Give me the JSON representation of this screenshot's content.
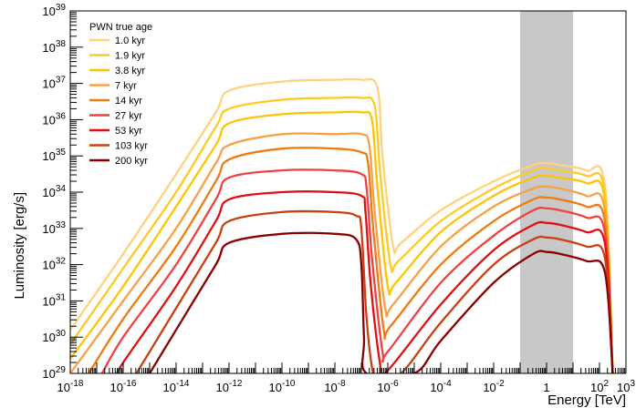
{
  "chart_data": {
    "type": "line",
    "xlabel": "Energy [TeV]",
    "ylabel": "Luminosity [erg/s]",
    "x_scale": "log",
    "y_scale": "log",
    "xlim": [
      1e-18,
      1000
    ],
    "ylim": [
      1e+29,
      1e+39
    ],
    "x_ticks": [
      {
        "base": "10",
        "exp": "-18",
        "value": -18
      },
      {
        "base": "10",
        "exp": "-16",
        "value": -16
      },
      {
        "base": "10",
        "exp": "-14",
        "value": -14
      },
      {
        "base": "10",
        "exp": "-12",
        "value": -12
      },
      {
        "base": "10",
        "exp": "-10",
        "value": -10
      },
      {
        "base": "10",
        "exp": "-8",
        "value": -8
      },
      {
        "base": "10",
        "exp": "-6",
        "value": -6
      },
      {
        "base": "10",
        "exp": "-4",
        "value": -4
      },
      {
        "base": "10",
        "exp": "-2",
        "value": -2
      },
      {
        "base": "1",
        "exp": "",
        "value": 0
      },
      {
        "base": "10",
        "exp": "2",
        "value": 2
      },
      {
        "base": "10",
        "exp": "3",
        "value": 3
      }
    ],
    "y_ticks": [
      {
        "base": "10",
        "exp": "29",
        "value": 29
      },
      {
        "base": "10",
        "exp": "30",
        "value": 30
      },
      {
        "base": "10",
        "exp": "31",
        "value": 31
      },
      {
        "base": "10",
        "exp": "32",
        "value": 32
      },
      {
        "base": "10",
        "exp": "33",
        "value": 33
      },
      {
        "base": "10",
        "exp": "34",
        "value": 34
      },
      {
        "base": "10",
        "exp": "35",
        "value": 35
      },
      {
        "base": "10",
        "exp": "36",
        "value": 36
      },
      {
        "base": "10",
        "exp": "37",
        "value": 37
      },
      {
        "base": "10",
        "exp": "38",
        "value": 38
      },
      {
        "base": "10",
        "exp": "39",
        "value": 39
      }
    ],
    "shaded_band": {
      "x_range": [
        0.1,
        10
      ],
      "color": "#c8c8c8"
    },
    "legend": {
      "title": "PWN true age",
      "placement": "top-left"
    },
    "series": [
      {
        "name": "1.0 kyr",
        "color": "#ffd27f",
        "log_x": [
          -18.0,
          -16.0,
          -14.0,
          -12.5,
          -12.0,
          -10.0,
          -8.0,
          -7.0,
          -6.4,
          -6.2,
          -5.8,
          -5.5,
          -4.0,
          -2.0,
          -0.5,
          0.0,
          0.5,
          1.5,
          2.2,
          2.5
        ],
        "log_y": [
          30.2,
          32.3,
          34.5,
          36.2,
          36.8,
          37.05,
          37.1,
          37.1,
          36.9,
          35.0,
          32.5,
          32.6,
          33.5,
          34.3,
          34.75,
          34.8,
          34.75,
          34.6,
          34.2,
          29.0
        ]
      },
      {
        "name": "1.9 kyr",
        "color": "#ffc926",
        "log_x": [
          -18.0,
          -16.0,
          -14.0,
          -12.5,
          -12.0,
          -10.0,
          -8.0,
          -7.0,
          -6.5,
          -6.3,
          -5.9,
          -5.6,
          -4.0,
          -2.0,
          -0.5,
          0.0,
          0.5,
          1.5,
          2.2,
          2.5
        ],
        "log_y": [
          29.8,
          31.9,
          34.0,
          35.8,
          36.3,
          36.55,
          36.6,
          36.6,
          36.4,
          34.6,
          32.0,
          32.1,
          33.2,
          34.1,
          34.6,
          34.65,
          34.6,
          34.45,
          34.0,
          29.0
        ]
      },
      {
        "name": "3.8 kyr",
        "color": "#ffc400",
        "log_x": [
          -18.0,
          -16.0,
          -14.0,
          -12.5,
          -12.0,
          -10.0,
          -8.0,
          -7.0,
          -6.6,
          -6.4,
          -6.0,
          -5.7,
          -4.0,
          -2.0,
          -0.5,
          0.0,
          0.5,
          1.5,
          2.2,
          2.5
        ],
        "log_y": [
          29.4,
          31.4,
          33.6,
          35.3,
          35.9,
          36.15,
          36.2,
          36.2,
          36.0,
          34.2,
          31.4,
          31.5,
          32.9,
          33.9,
          34.4,
          34.45,
          34.4,
          34.25,
          33.8,
          29.0
        ]
      },
      {
        "name": "7 kyr",
        "color": "#f8a048",
        "log_x": [
          -18.0,
          -16.0,
          -14.0,
          -12.5,
          -12.0,
          -10.0,
          -8.0,
          -7.0,
          -6.7,
          -6.5,
          -6.1,
          -5.8,
          -4.0,
          -2.0,
          -0.5,
          0.0,
          0.5,
          1.5,
          2.2,
          2.5
        ],
        "log_y": [
          29.0,
          31.0,
          33.0,
          34.8,
          35.3,
          35.6,
          35.6,
          35.6,
          35.3,
          33.5,
          30.8,
          30.9,
          32.5,
          33.6,
          34.1,
          34.15,
          34.1,
          33.9,
          33.5,
          29.0
        ]
      },
      {
        "name": "14 kyr",
        "color": "#ee7a10",
        "log_x": [
          -17.3,
          -16.0,
          -14.0,
          -12.5,
          -12.0,
          -10.0,
          -8.0,
          -7.0,
          -6.75,
          -6.55,
          -6.15,
          -5.9,
          -4.0,
          -2.0,
          -0.5,
          0.0,
          0.5,
          1.5,
          2.2,
          2.5
        ],
        "log_y": [
          29.0,
          30.5,
          32.5,
          34.3,
          34.9,
          35.2,
          35.2,
          35.1,
          34.8,
          33.0,
          30.2,
          30.3,
          32.0,
          33.2,
          33.8,
          33.85,
          33.8,
          33.6,
          33.2,
          29.0
        ]
      },
      {
        "name": "27 kyr",
        "color": "#f04040",
        "log_x": [
          -16.8,
          -16.0,
          -14.0,
          -12.5,
          -12.0,
          -10.0,
          -8.0,
          -7.0,
          -6.8,
          -6.6,
          -6.2,
          -6.0,
          -4.0,
          -2.0,
          -0.5,
          0.0,
          0.5,
          1.5,
          2.2,
          2.5
        ],
        "log_y": [
          29.0,
          30.0,
          32.0,
          33.8,
          34.4,
          34.6,
          34.6,
          34.5,
          34.1,
          32.2,
          29.6,
          29.6,
          31.5,
          32.8,
          33.5,
          33.55,
          33.5,
          33.3,
          32.9,
          29.0
        ]
      },
      {
        "name": "53 kyr",
        "color": "#e01010",
        "log_x": [
          -16.2,
          -16.0,
          -14.0,
          -12.5,
          -12.0,
          -10.0,
          -8.0,
          -7.0,
          -6.85,
          -6.65,
          -6.3,
          -6.1,
          -4.0,
          -2.0,
          -0.5,
          0.0,
          0.5,
          1.5,
          2.2,
          2.5
        ],
        "log_y": [
          29.0,
          29.3,
          31.4,
          33.2,
          33.8,
          34.0,
          34.0,
          33.9,
          33.5,
          31.5,
          29.3,
          29.0,
          30.9,
          32.4,
          33.1,
          33.15,
          33.1,
          32.9,
          32.6,
          29.0
        ]
      },
      {
        "name": "103 kyr",
        "color": "#c84010",
        "log_x": [
          -15.5,
          -14.0,
          -12.5,
          -12.0,
          -10.0,
          -8.0,
          -7.2,
          -7.0,
          -6.8,
          -6.55,
          -6.3,
          -6.2,
          -5.5,
          -4.0,
          -2.0,
          -0.5,
          0.0,
          0.5,
          1.5,
          2.2,
          2.5
        ],
        "log_y": [
          29.0,
          30.8,
          32.6,
          33.2,
          33.45,
          33.45,
          33.35,
          33.0,
          30.5,
          29.0,
          29.0,
          29.0,
          29.0,
          30.4,
          32.0,
          32.7,
          32.75,
          32.7,
          32.5,
          32.2,
          29.0
        ]
      },
      {
        "name": "200 kyr",
        "color": "#880000",
        "log_x": [
          -15.0,
          -14.0,
          -12.5,
          -12.0,
          -10.0,
          -8.0,
          -7.2,
          -7.0,
          -6.9,
          -6.8,
          -5.0,
          -4.0,
          -2.0,
          -0.5,
          0.0,
          0.5,
          1.5,
          2.2,
          2.5
        ],
        "log_y": [
          29.0,
          30.2,
          32.0,
          32.6,
          32.85,
          32.85,
          32.7,
          32.0,
          30.0,
          29.0,
          29.0,
          29.9,
          31.5,
          32.3,
          32.35,
          32.3,
          32.1,
          31.8,
          29.0
        ]
      }
    ]
  }
}
